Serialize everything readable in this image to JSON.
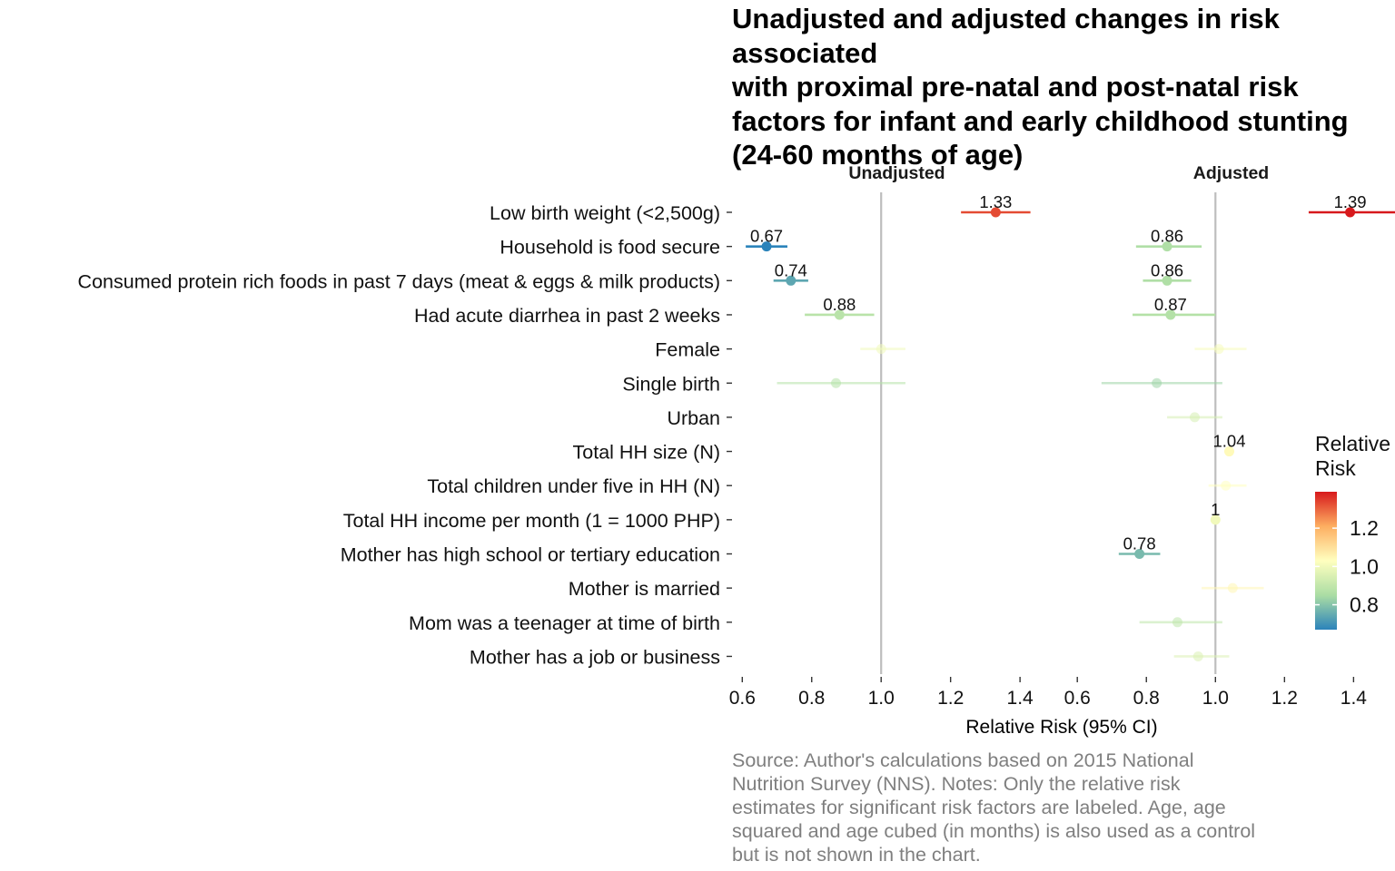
{
  "chart_data": {
    "type": "forest",
    "title": "Unadjusted and adjusted changes in risk associated\nwith proximal pre-natal and post-natal risk\nfactors for infant and early childhood stunting\n(24-60 months of age)",
    "xlabel": "Relative Risk (95% CI)",
    "x_ticks": [
      0.6,
      0.8,
      1.0,
      1.2,
      1.4
    ],
    "x_tick_labels": [
      "0.6",
      "0.8",
      "1.0",
      "1.2",
      "1.4"
    ],
    "xlim": [
      0.56,
      1.52
    ],
    "reference_line": 1.0,
    "factors": [
      "Low birth weight (<2,500g)",
      "Household is food secure",
      "Consumed protein rich foods in past 7 days (meat & eggs & milk products)",
      "Had acute diarrhea in past 2 weeks",
      "Female",
      "Single birth",
      "Urban",
      "Total HH size (N)",
      "Total children under five in HH (N)",
      "Total HH income per month (1 = 1000 PHP)",
      "Mother has high school or tertiary education",
      "Mother is married",
      "Mom was a teenager at time of birth",
      "Mother has a job or business"
    ],
    "panels": [
      {
        "name": "Unadjusted",
        "points": [
          {
            "rr": 1.33,
            "lo": 1.23,
            "hi": 1.43,
            "label": "1.33"
          },
          {
            "rr": 0.67,
            "lo": 0.61,
            "hi": 0.73,
            "label": "0.67"
          },
          {
            "rr": 0.74,
            "lo": 0.69,
            "hi": 0.79,
            "label": "0.74"
          },
          {
            "rr": 0.88,
            "lo": 0.78,
            "hi": 0.98,
            "label": "0.88"
          },
          {
            "rr": 1.0,
            "lo": 0.94,
            "hi": 1.07,
            "label": ""
          },
          {
            "rr": 0.87,
            "lo": 0.7,
            "hi": 1.07,
            "label": ""
          }
        ]
      },
      {
        "name": "Adjusted",
        "points": [
          {
            "rr": 1.39,
            "lo": 1.27,
            "hi": 1.52,
            "label": "1.39"
          },
          {
            "rr": 0.86,
            "lo": 0.77,
            "hi": 0.96,
            "label": "0.86"
          },
          {
            "rr": 0.86,
            "lo": 0.79,
            "hi": 0.93,
            "label": "0.86"
          },
          {
            "rr": 0.87,
            "lo": 0.76,
            "hi": 1.0,
            "label": "0.87"
          },
          {
            "rr": 1.01,
            "lo": 0.94,
            "hi": 1.09,
            "label": ""
          },
          {
            "rr": 0.83,
            "lo": 0.67,
            "hi": 1.02,
            "label": ""
          },
          {
            "rr": 0.94,
            "lo": 0.86,
            "hi": 1.02,
            "label": ""
          },
          {
            "rr": 1.04,
            "lo": 1.04,
            "hi": 1.04,
            "label": "1.04"
          },
          {
            "rr": 1.03,
            "lo": 0.98,
            "hi": 1.09,
            "label": ""
          },
          {
            "rr": 1.0,
            "lo": 1.0,
            "hi": 1.0,
            "label": "1"
          },
          {
            "rr": 0.78,
            "lo": 0.72,
            "hi": 0.84,
            "label": "0.78"
          },
          {
            "rr": 1.05,
            "lo": 0.96,
            "hi": 1.14,
            "label": ""
          },
          {
            "rr": 0.89,
            "lo": 0.78,
            "hi": 1.02,
            "label": ""
          },
          {
            "rr": 0.95,
            "lo": 0.88,
            "hi": 1.04,
            "label": ""
          }
        ]
      }
    ],
    "legend": {
      "title": "Relative\nRisk",
      "ticks": [
        1.2,
        1.0,
        0.8
      ],
      "tick_labels": [
        "1.2",
        "1.0",
        "0.8"
      ],
      "range": [
        0.67,
        1.39
      ],
      "colors": [
        "#d7191c",
        "#fdae61",
        "#ffffbf",
        "#abdda4",
        "#2b83ba"
      ],
      "placement": "right"
    },
    "caption": "Source: Author's calculations based on 2015 National\nNutrition Survey (NNS). Notes: Only the relative risk\nestimates for significant risk factors are labeled. Age, age\nsquared and age cubed (in months) is also used as a control\nbut is not shown in the chart."
  }
}
